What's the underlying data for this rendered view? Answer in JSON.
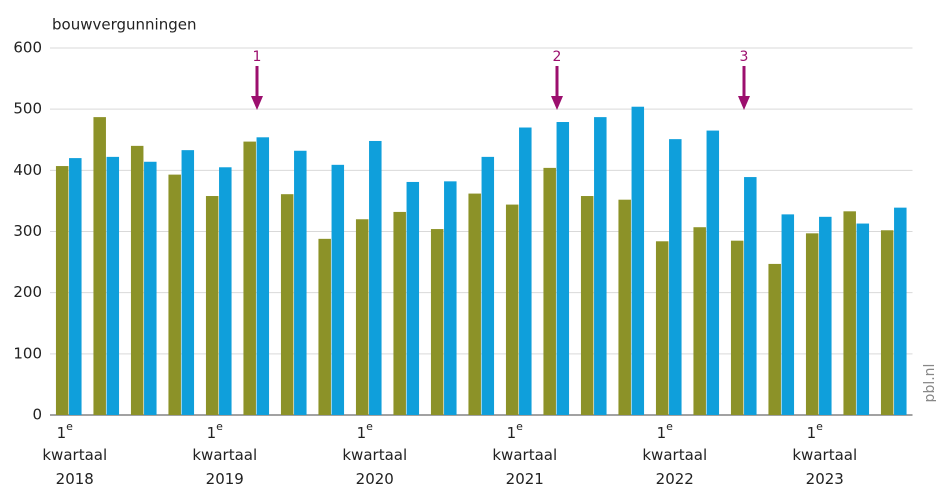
{
  "chart_data": {
    "type": "bar",
    "y_label": "bouwvergunningen",
    "source": "pbl.nl",
    "categories": [
      "1e kwartaal 2018",
      null,
      null,
      null,
      "1e kwartaal 2019",
      null,
      null,
      null,
      "1e kwartaal 2020",
      null,
      null,
      null,
      "1e kwartaal 2021",
      null,
      null,
      null,
      "1e kwartaal 2022",
      null,
      null,
      null,
      "1e kwartaal 2023",
      null,
      null
    ],
    "series": [
      {
        "color": "#8c9228",
        "values": [
          407,
          487,
          440,
          393,
          358,
          447,
          361,
          288,
          320,
          332,
          304,
          362,
          344,
          404,
          358,
          352,
          284,
          307,
          285,
          247,
          297,
          333,
          302
        ]
      },
      {
        "color": "#0f9fdb",
        "values": [
          420,
          422,
          414,
          433,
          405,
          454,
          432,
          409,
          448,
          381,
          382,
          422,
          470,
          479,
          487,
          504,
          451,
          465,
          389,
          328,
          324,
          313,
          339
        ]
      }
    ],
    "annotations": [
      "1",
      "2",
      "3"
    ],
    "annotation_color": "#9c0f6e",
    "ylim": [
      0,
      600
    ],
    "yticks": [
      0,
      100,
      200,
      300,
      400,
      500,
      600
    ],
    "grid": true
  }
}
